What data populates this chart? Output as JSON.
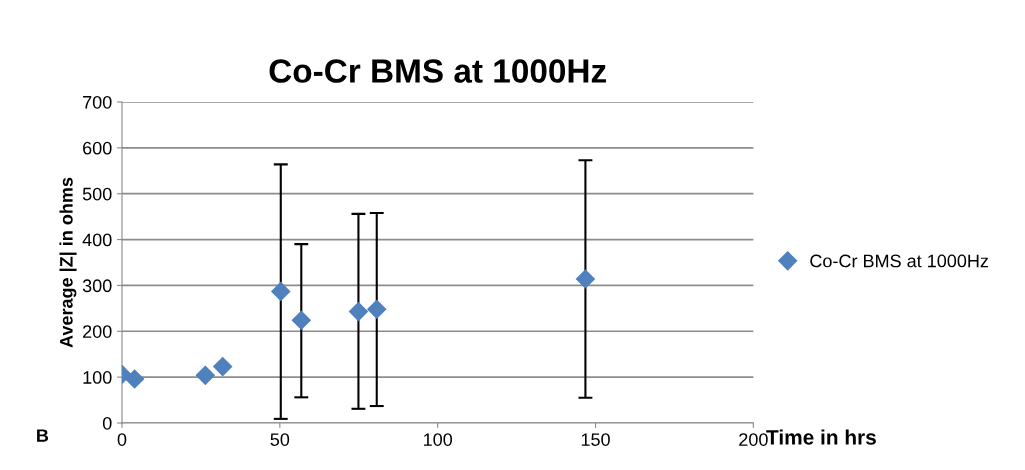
{
  "chart_data": {
    "type": "scatter",
    "title": "Co-Cr BMS at 1000Hz",
    "xlabel": "Time in hrs",
    "ylabel": "Average |Z| in ohms",
    "annotations": [
      "B"
    ],
    "x": [
      0,
      4,
      26.4,
      31.9,
      50.3,
      56.8,
      74.9,
      80.7,
      146.8
    ],
    "series": [
      {
        "name": "Co-Cr BMS at 1000Hz",
        "color": "#4f81bd",
        "values": [
          106,
          96,
          104,
          123,
          287,
          224,
          243,
          248,
          314
        ],
        "errors": [
          null,
          null,
          null,
          null,
          [
            9,
            564
          ],
          [
            56,
            390
          ],
          [
            31,
            456
          ],
          [
            37,
            458
          ],
          [
            55,
            573
          ]
        ]
      }
    ],
    "xlim": [
      0,
      200
    ],
    "xticks": [
      0,
      50,
      100,
      150,
      200
    ],
    "ylim": [
      0,
      700
    ],
    "yticks": [
      0,
      100,
      200,
      300,
      400,
      500,
      600,
      700
    ],
    "grid": "y",
    "legend": "right",
    "marker": "diamond"
  }
}
